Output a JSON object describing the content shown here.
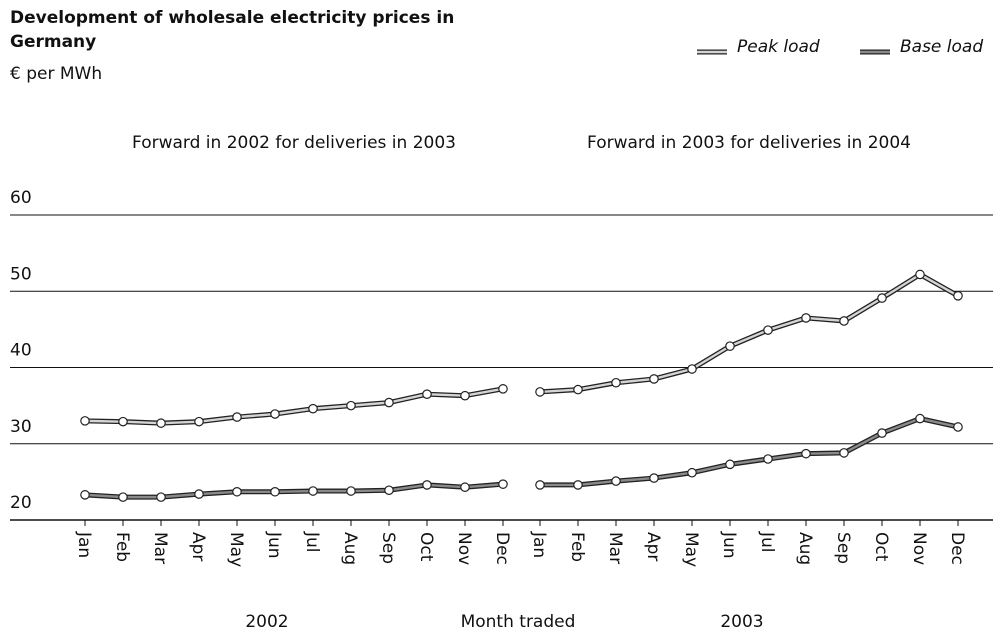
{
  "chart_data": {
    "type": "line",
    "title": "Development of wholesale electricity prices in Germany",
    "subtitle": "€ per MWh",
    "xlabel": "Month traded",
    "ylim": [
      20,
      60
    ],
    "yticks": [
      20,
      30,
      40,
      50,
      60
    ],
    "grid": true,
    "legend": "top-right",
    "panels": [
      {
        "title": "Forward in 2002 for deliveries in 2003",
        "year": "2002"
      },
      {
        "title": "Forward in 2003 for deliveries in 2004",
        "year": "2003"
      }
    ],
    "categories": [
      [
        "Jan",
        "Feb",
        "Mar",
        "Apr",
        "May",
        "Jun",
        "Jul",
        "Aug",
        "Sep",
        "Oct",
        "Nov",
        "Dec"
      ],
      [
        "Jan",
        "Feb",
        "Mar",
        "Apr",
        "May",
        "Jun",
        "Jul",
        "Aug",
        "Sep",
        "Oct",
        "Nov",
        "Dec"
      ]
    ],
    "series": [
      {
        "name": "Peak load",
        "color": "#d4d4d4",
        "values": [
          [
            33.0,
            32.9,
            32.7,
            32.9,
            33.5,
            33.9,
            34.6,
            35.0,
            35.4,
            36.5,
            36.3,
            37.2
          ],
          [
            36.8,
            37.1,
            38.0,
            38.5,
            39.8,
            42.8,
            44.9,
            46.5,
            46.1,
            49.1,
            52.2,
            49.4
          ]
        ]
      },
      {
        "name": "Base load",
        "color": "#8a8a8a",
        "values": [
          [
            23.3,
            23.0,
            23.0,
            23.4,
            23.7,
            23.7,
            23.8,
            23.8,
            23.9,
            24.6,
            24.3,
            24.7
          ],
          [
            24.6,
            24.6,
            25.1,
            25.5,
            26.2,
            27.3,
            28.0,
            28.7,
            28.8,
            31.4,
            33.3,
            32.2
          ]
        ]
      }
    ]
  }
}
